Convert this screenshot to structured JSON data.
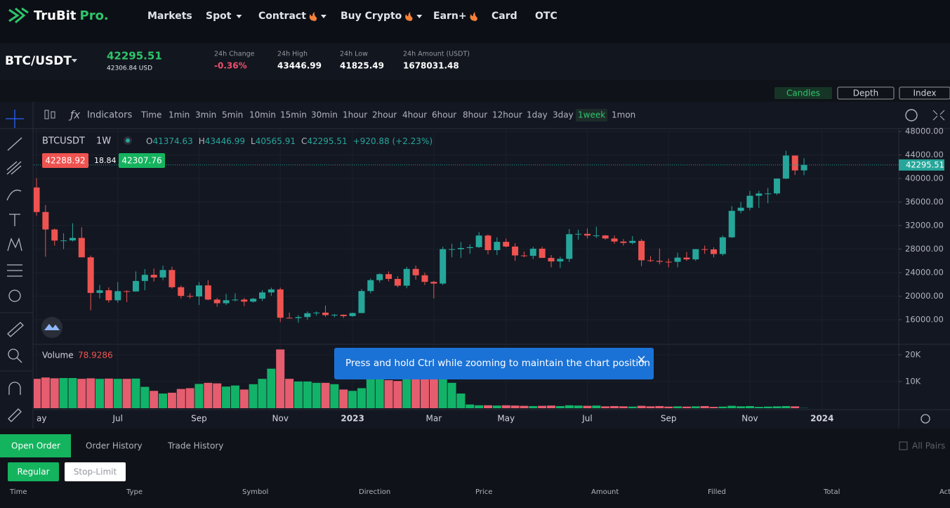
{
  "header": {
    "logo": "TruBit",
    "logo_suffix": "Pro.",
    "nav": [
      "Markets",
      "Spot",
      "Contract",
      "Buy Crypto",
      "Earn+",
      "Card",
      "OTC"
    ]
  },
  "ticker": {
    "pair": "BTC/USDT",
    "price": "42295.51",
    "price_usd": "42306.84 USD",
    "stats": [
      {
        "label": "24h Change",
        "value": "-0.36%"
      },
      {
        "label": "24h High",
        "value": "43446.99"
      },
      {
        "label": "24h Low",
        "value": "41825.49"
      },
      {
        "label": "24h Amount (USDT)",
        "value": "1678031.48"
      }
    ]
  },
  "view_tabs": [
    "Candles",
    "Depth",
    "Index"
  ],
  "toolbar": {
    "indicators": "Indicators",
    "intervals": [
      "Time",
      "1min",
      "3min",
      "5min",
      "10min",
      "15min",
      "30min",
      "1hour",
      "2hour",
      "4hour",
      "6hour",
      "8hour",
      "12hour",
      "1day",
      "3day",
      "1week",
      "1mon"
    ],
    "active_interval": "1week"
  },
  "chart_data": {
    "type": "candlestick",
    "symbol": "BTCUSDT",
    "interval": "1W",
    "ohlc_prefixes": [
      "O",
      "H",
      "L",
      "C"
    ],
    "change": "+920.88 (+2.23%)",
    "price_tags": [
      42288.92,
      18.84,
      42307.76
    ],
    "volume_label": "Volume",
    "up_color": "#26a69a",
    "down_color": "#ef5350",
    "volume_up_color": "#12b368",
    "volume_down_color": "#e55d6e",
    "categories": [
      "ay",
      null,
      null,
      null,
      null,
      null,
      null,
      null,
      null,
      "Jul",
      null,
      null,
      null,
      null,
      null,
      null,
      null,
      null,
      "Sep",
      null,
      null,
      null,
      null,
      null,
      null,
      null,
      null,
      "Nov",
      null,
      null,
      null,
      null,
      null,
      null,
      null,
      "2023",
      null,
      null,
      null,
      null,
      null,
      null,
      null,
      null,
      "Mar",
      null,
      null,
      null,
      null,
      null,
      null,
      null,
      "May",
      null,
      null,
      null,
      null,
      null,
      null,
      null,
      null,
      "Jul",
      null,
      null,
      null,
      null,
      null,
      null,
      null,
      null,
      "Sep",
      null,
      null,
      null,
      null,
      null,
      null,
      null,
      null,
      "Nov",
      null,
      null,
      null,
      null,
      null,
      null,
      null,
      "2024"
    ],
    "candles": [
      [
        38470,
        40050,
        33700,
        34300,
        11000
      ],
      [
        34300,
        35500,
        26700,
        31330,
        11500
      ],
      [
        31330,
        31500,
        28600,
        29450,
        11200
      ],
      [
        29450,
        30700,
        28000,
        29470,
        11300
      ],
      [
        29470,
        32400,
        29300,
        29900,
        11300
      ],
      [
        29900,
        31700,
        26600,
        26600,
        11000
      ],
      [
        26600,
        26900,
        17600,
        20550,
        11200
      ],
      [
        20550,
        21900,
        19600,
        21000,
        11000
      ],
      [
        21000,
        21500,
        18900,
        19300,
        11100
      ],
      [
        19300,
        22400,
        18900,
        20850,
        11000
      ],
      [
        20850,
        21000,
        19000,
        20800,
        11000
      ],
      [
        20800,
        24200,
        20750,
        22580,
        11100
      ],
      [
        22580,
        24600,
        21000,
        23630,
        8000
      ],
      [
        23630,
        24700,
        22500,
        23180,
        6500
      ],
      [
        23180,
        25200,
        22700,
        24440,
        5500
      ],
      [
        24440,
        25000,
        21300,
        21520,
        5800
      ],
      [
        21520,
        21800,
        19600,
        20040,
        7200
      ],
      [
        20040,
        20500,
        19600,
        19950,
        7500
      ],
      [
        19950,
        22400,
        18500,
        21830,
        9100
      ],
      [
        21830,
        22700,
        19300,
        19420,
        9500
      ],
      [
        19420,
        19700,
        18200,
        18800,
        9300
      ],
      [
        18800,
        20400,
        18500,
        19310,
        8100
      ],
      [
        19310,
        20500,
        19100,
        19420,
        8500
      ],
      [
        19420,
        19700,
        18300,
        19070,
        7000
      ],
      [
        19070,
        19700,
        18900,
        19570,
        9000
      ],
      [
        19570,
        21000,
        19200,
        20630,
        11000
      ],
      [
        20630,
        21450,
        20050,
        21150,
        14800
      ],
      [
        21150,
        21450,
        15600,
        16330,
        22000
      ],
      [
        16330,
        17200,
        16200,
        16280,
        11000
      ],
      [
        16280,
        16800,
        15500,
        16450,
        10000
      ],
      [
        16450,
        17400,
        16000,
        17100,
        10000
      ],
      [
        17100,
        17400,
        16700,
        17200,
        9500
      ],
      [
        17200,
        18400,
        16500,
        16780,
        9500
      ],
      [
        16780,
        17000,
        16400,
        16840,
        9000
      ],
      [
        16840,
        16900,
        16300,
        16610,
        7000
      ],
      [
        16610,
        17200,
        16500,
        17130,
        6500
      ],
      [
        17130,
        21200,
        17100,
        20870,
        7500
      ],
      [
        20870,
        23000,
        20500,
        22720,
        11000
      ],
      [
        22720,
        23900,
        22300,
        23740,
        11000
      ],
      [
        23740,
        24200,
        22500,
        22930,
        10500
      ],
      [
        22930,
        23400,
        21500,
        21780,
        10200
      ],
      [
        21780,
        25000,
        21350,
        24630,
        11000
      ],
      [
        24630,
        25200,
        22800,
        23550,
        11500
      ],
      [
        23550,
        24000,
        21900,
        22430,
        12000
      ],
      [
        22430,
        22600,
        19600,
        22140,
        11800
      ],
      [
        22140,
        28400,
        21900,
        27990,
        11500
      ],
      [
        27990,
        28900,
        26600,
        27990,
        9500
      ],
      [
        27990,
        29200,
        26500,
        28180,
        5500
      ],
      [
        28180,
        28800,
        27200,
        28330,
        1400
      ],
      [
        28330,
        30900,
        28200,
        30300,
        1100
      ],
      [
        30300,
        30500,
        27100,
        27820,
        1100
      ],
      [
        27820,
        30000,
        27000,
        29230,
        1000
      ],
      [
        29230,
        29800,
        28300,
        28430,
        1100
      ],
      [
        28430,
        29000,
        26000,
        26920,
        1000
      ],
      [
        26920,
        27600,
        26600,
        26850,
        900
      ],
      [
        26850,
        28400,
        26300,
        28070,
        800
      ],
      [
        28070,
        28400,
        26500,
        26500,
        900
      ],
      [
        26500,
        27000,
        24900,
        25900,
        1000
      ],
      [
        25900,
        26700,
        24800,
        26340,
        800
      ],
      [
        26340,
        31400,
        25800,
        30540,
        1100
      ],
      [
        30540,
        31300,
        29600,
        30590,
        1000
      ],
      [
        30590,
        31500,
        29800,
        30300,
        900
      ],
      [
        30300,
        31800,
        29900,
        30320,
        1000
      ],
      [
        30320,
        30400,
        29600,
        29800,
        700
      ],
      [
        29800,
        30300,
        28900,
        29280,
        800
      ],
      [
        29280,
        29700,
        28600,
        29050,
        700
      ],
      [
        29050,
        30200,
        28800,
        29400,
        600
      ],
      [
        29400,
        29700,
        25100,
        26100,
        900
      ],
      [
        26100,
        26800,
        25800,
        26000,
        700
      ],
      [
        26000,
        28100,
        25400,
        25850,
        800
      ],
      [
        25850,
        26400,
        24900,
        25840,
        600
      ],
      [
        25840,
        27400,
        24900,
        26550,
        700
      ],
      [
        26550,
        27500,
        26000,
        26250,
        600
      ],
      [
        26250,
        28000,
        26000,
        27990,
        700
      ],
      [
        27990,
        28600,
        27200,
        27940,
        800
      ],
      [
        27940,
        28300,
        26600,
        27160,
        500
      ],
      [
        27160,
        30300,
        26900,
        30000,
        600
      ],
      [
        30000,
        35300,
        29900,
        34500,
        900
      ],
      [
        34500,
        36000,
        34100,
        35030,
        700
      ],
      [
        35030,
        37900,
        34600,
        37060,
        800
      ],
      [
        37060,
        37900,
        35000,
        37450,
        500
      ],
      [
        37450,
        38400,
        35800,
        37460,
        600
      ],
      [
        37460,
        40000,
        37200,
        39980,
        700
      ],
      [
        39980,
        44700,
        39900,
        43900,
        800
      ],
      [
        43900,
        43900,
        40600,
        41370,
        700
      ],
      [
        41374.63,
        43446.99,
        40565.91,
        42295.51,
        78.9286
      ],
      null,
      null
    ],
    "ylim": [
      11820,
      48480
    ],
    "yticks": [
      {
        "value": 48000,
        "label": "48000.00"
      },
      {
        "value": 44000,
        "label": "44000.00"
      },
      {
        "value": 40000,
        "label": "40000.00"
      },
      {
        "value": 36000,
        "label": "36000.00"
      },
      {
        "value": 32000,
        "label": "32000.00"
      },
      {
        "value": 28000,
        "label": "28000.00"
      },
      {
        "value": 24000,
        "label": "24000.00"
      },
      {
        "value": 20000,
        "label": "20000.00"
      },
      {
        "value": 16000,
        "label": "16000.00"
      }
    ],
    "volume_ylim": [
      0,
      23400
    ],
    "volume_yticks": [
      {
        "value": 20000,
        "label": "20K"
      },
      {
        "value": 10000,
        "label": "10K"
      }
    ],
    "grid": true
  },
  "toast": "Press and hold Ctrl while zooming to maintain the chart position",
  "orders": {
    "tabs": [
      "Open Order",
      "Order History",
      "Trade History"
    ],
    "all_pairs": "All Pairs",
    "types": [
      "Regular",
      "Stop-Limit"
    ],
    "columns": [
      "Time",
      "Type",
      "Symbol",
      "Direction",
      "Price",
      "Amount",
      "Filled",
      "Total",
      "Action"
    ]
  }
}
